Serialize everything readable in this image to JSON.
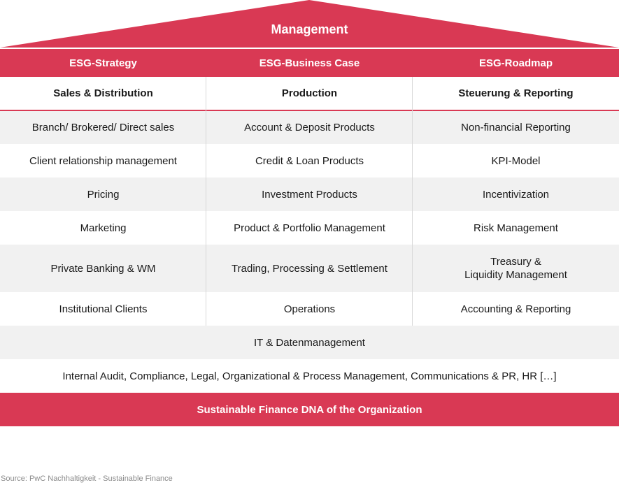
{
  "colors": {
    "accent": "#d93954",
    "row_grey": "#f1f1f1"
  },
  "roof": {
    "title": "Management"
  },
  "band": [
    "ESG-Strategy",
    "ESG-Business Case",
    "ESG-Roadmap"
  ],
  "headers": [
    "Sales & Distribution",
    "Production",
    "Steuerung & Reporting"
  ],
  "rows": [
    [
      "Branch/ Brokered/ Direct sales",
      "Account & Deposit Products",
      "Non-financial Reporting"
    ],
    [
      "Client relationship management",
      "Credit & Loan Products",
      "KPI-Model"
    ],
    [
      "Pricing",
      "Investment Products",
      "Incentivization"
    ],
    [
      "Marketing",
      "Product & Portfolio Management",
      "Risk Management"
    ],
    [
      "Private Banking & WM",
      "Trading, Processing & Settlement",
      "Treasury &\nLiquidity Management"
    ],
    [
      "Institutional Clients",
      "Operations",
      "Accounting & Reporting"
    ]
  ],
  "it_row": "IT & Datenmanagement",
  "support_row": "Internal Audit, Compliance, Legal, Organizational & Process Management, Communications & PR, HR […]",
  "foundation": "Sustainable Finance DNA of the Organization",
  "source": "Source: PwC Nachhaltigkeit - Sustainable Finance"
}
